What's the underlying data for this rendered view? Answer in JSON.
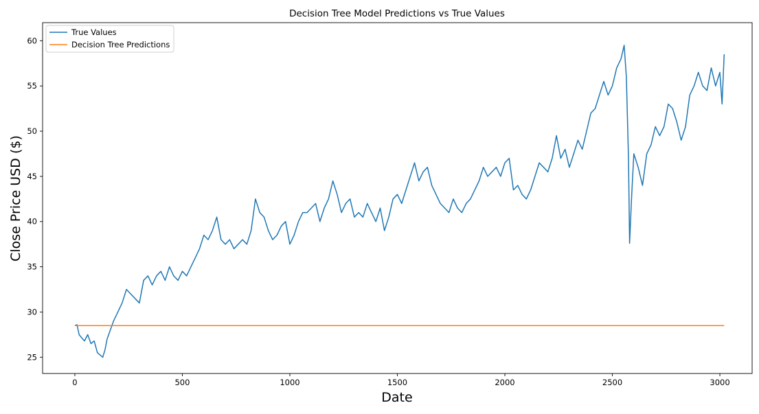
{
  "chart_data": {
    "type": "line",
    "title": "Decision Tree Model Predictions vs True Values",
    "xlabel": "Date",
    "ylabel": "Close Price USD ($)",
    "xlim": [
      -150,
      3150
    ],
    "ylim": [
      23.2,
      62.0
    ],
    "xticks": [
      0,
      500,
      1000,
      1500,
      2000,
      2500,
      3000
    ],
    "yticks": [
      25,
      30,
      35,
      40,
      45,
      50,
      55,
      60
    ],
    "grid": false,
    "legend": "top-left",
    "series": [
      {
        "name": "True Values",
        "color": "#1f77b4",
        "x": [
          0,
          10,
          20,
          30,
          45,
          60,
          75,
          90,
          105,
          120,
          130,
          140,
          150,
          165,
          180,
          200,
          220,
          240,
          260,
          280,
          300,
          320,
          340,
          360,
          380,
          400,
          420,
          440,
          460,
          480,
          500,
          520,
          540,
          560,
          580,
          600,
          620,
          640,
          660,
          680,
          700,
          720,
          740,
          760,
          780,
          800,
          820,
          840,
          860,
          880,
          900,
          920,
          940,
          960,
          980,
          1000,
          1020,
          1040,
          1060,
          1080,
          1100,
          1120,
          1140,
          1160,
          1180,
          1200,
          1220,
          1240,
          1260,
          1280,
          1300,
          1320,
          1340,
          1360,
          1380,
          1400,
          1420,
          1440,
          1460,
          1480,
          1500,
          1520,
          1540,
          1560,
          1580,
          1600,
          1620,
          1640,
          1660,
          1680,
          1700,
          1720,
          1740,
          1760,
          1780,
          1800,
          1820,
          1840,
          1860,
          1880,
          1900,
          1920,
          1940,
          1960,
          1980,
          2000,
          2020,
          2040,
          2060,
          2080,
          2100,
          2120,
          2140,
          2160,
          2180,
          2200,
          2220,
          2240,
          2260,
          2280,
          2300,
          2320,
          2340,
          2360,
          2380,
          2400,
          2420,
          2440,
          2460,
          2480,
          2500,
          2520,
          2540,
          2555,
          2565,
          2575,
          2580,
          2590,
          2600,
          2620,
          2640,
          2660,
          2680,
          2700,
          2720,
          2740,
          2760,
          2780,
          2800,
          2820,
          2840,
          2860,
          2880,
          2900,
          2920,
          2940,
          2960,
          2980,
          3000,
          3010,
          3020
        ],
        "values": [
          28.5,
          28.6,
          27.5,
          27.2,
          26.8,
          27.5,
          26.5,
          26.8,
          25.5,
          25.2,
          25.0,
          25.8,
          27.0,
          28.0,
          29.0,
          30.0,
          31.0,
          32.5,
          32.0,
          31.5,
          31.0,
          33.5,
          34.0,
          33.0,
          34.0,
          34.5,
          33.5,
          35.0,
          34.0,
          33.5,
          34.5,
          34.0,
          35.0,
          36.0,
          37.0,
          38.5,
          38.0,
          39.0,
          40.5,
          38.0,
          37.5,
          38.0,
          37.0,
          37.5,
          38.0,
          37.5,
          39.0,
          42.5,
          41.0,
          40.5,
          39.0,
          38.0,
          38.5,
          39.5,
          40.0,
          37.5,
          38.5,
          40.0,
          41.0,
          41.0,
          41.5,
          42.0,
          40.0,
          41.5,
          42.5,
          44.5,
          43.0,
          41.0,
          42.0,
          42.5,
          40.5,
          41.0,
          40.5,
          42.0,
          41.0,
          40.0,
          41.5,
          39.0,
          40.5,
          42.5,
          43.0,
          42.0,
          43.5,
          45.0,
          46.5,
          44.5,
          45.5,
          46.0,
          44.0,
          43.0,
          42.0,
          41.5,
          41.0,
          42.5,
          41.5,
          41.0,
          42.0,
          42.5,
          43.5,
          44.5,
          46.0,
          45.0,
          45.5,
          46.0,
          45.0,
          46.5,
          47.0,
          43.5,
          44.0,
          43.0,
          42.5,
          43.5,
          45.0,
          46.5,
          46.0,
          45.5,
          47.0,
          49.5,
          47.0,
          48.0,
          46.0,
          47.5,
          49.0,
          48.0,
          50.0,
          52.0,
          52.5,
          54.0,
          55.5,
          54.0,
          55.0,
          57.0,
          58.0,
          59.5,
          56.0,
          47.0,
          37.6,
          43.0,
          47.5,
          46.0,
          44.0,
          47.5,
          48.5,
          50.5,
          49.5,
          50.5,
          53.0,
          52.5,
          51.0,
          49.0,
          50.5,
          54.0,
          55.0,
          56.5,
          55.0,
          54.5,
          57.0,
          55.0,
          56.5,
          53.0,
          58.5
        ]
      },
      {
        "name": "Decision Tree Predictions",
        "color": "#ff7f0e",
        "x": [
          0,
          3020
        ],
        "values": [
          28.5,
          28.5
        ]
      }
    ]
  }
}
